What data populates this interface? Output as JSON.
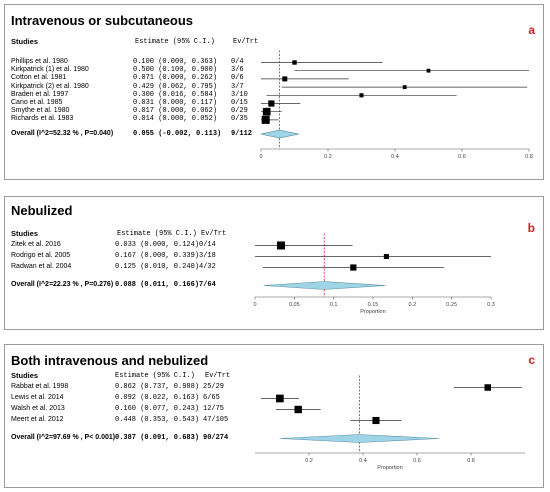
{
  "panels": [
    {
      "title": "Intravenous or subcutaneous",
      "label": "a",
      "header": {
        "studies": "Studies",
        "estimate": "Estimate (95% C.I.)",
        "evtrt": "Ev/Trt"
      },
      "axis_ticks": [
        "0",
        "0.2",
        "0.4",
        "0.6",
        "0.8"
      ],
      "xlabel": "",
      "rows": [
        {
          "study": "Phillips et al. 1980",
          "estimate_text": "0.100 (0.000, 0.363)",
          "evtrt": "0/4"
        },
        {
          "study": "Kirkpatrick (1) et al. 1980",
          "estimate_text": "0.500 (0.100, 0.900)",
          "evtrt": "3/6"
        },
        {
          "study": "Cotton et al. 1981",
          "estimate_text": "0.071 (0.000, 0.262)",
          "evtrt": "0/6"
        },
        {
          "study": "Kirkpatrick (2) et al. 1980",
          "estimate_text": "0.429 (0.062, 0.795)",
          "evtrt": "3/7"
        },
        {
          "study": "Braden et al. 1997",
          "estimate_text": "0.300 (0.016, 0.584)",
          "evtrt": "3/10"
        },
        {
          "study": "Cano et al. 1985",
          "estimate_text": "0.031 (0.000, 0.117)",
          "evtrt": "0/15"
        },
        {
          "study": "Smythe et al. 1980",
          "estimate_text": "0.017 (0.000, 0.062)",
          "evtrt": "0/29"
        },
        {
          "study": "Richards et al. 1983",
          "estimate_text": "0.014 (0.000, 0.052)",
          "evtrt": "0/35"
        }
      ],
      "overall": {
        "study": "Overall (I^2=52.32 % , P=0.040)",
        "estimate_text": "0.055 (-0.002, 0.113)",
        "evtrt": "9/112"
      }
    },
    {
      "title": "Nebulized",
      "label": "b",
      "header": {
        "studies": "Studies",
        "estimate": "Estimate (95% C.I.)",
        "evtrt": "Ev/Trt"
      },
      "axis_ticks": [
        "0",
        "0.05",
        "0.1",
        "0.15",
        "0.2",
        "0.25",
        "0.3"
      ],
      "xlabel": "Proportion",
      "rows": [
        {
          "study": "Zitek et al. 2016",
          "estimate_text": "0.033 (0.000, 0.124)",
          "evtrt": "0/14"
        },
        {
          "study": "Rodrigo et al. 2005",
          "estimate_text": "0.167 (0.000, 0.339)",
          "evtrt": "3/18"
        },
        {
          "study": "Radwan et al. 2004",
          "estimate_text": "0.125 (0.010, 0.240)",
          "evtrt": "4/32"
        }
      ],
      "overall": {
        "study": "Overall (I^2=22.23 % , P=0.276)",
        "estimate_text": "0.088 (0.011, 0.166)",
        "evtrt": "7/64"
      }
    },
    {
      "title": "Both intravenous and nebulized",
      "label": "c",
      "header": {
        "studies": "Studies",
        "estimate": "Estimate (95% C.I.)",
        "evtrt": "Ev/Trt"
      },
      "axis_ticks": [
        "0.2",
        "0.4",
        "0.6",
        "0.8"
      ],
      "xlabel": "Proportion",
      "rows": [
        {
          "study": "Rabbat et al. 1998",
          "estimate_text": "0.862 (0.737, 0.988)",
          "evtrt": "25/29"
        },
        {
          "study": "Lewis et al. 2014",
          "estimate_text": "0.092 (0.022, 0.163)",
          "evtrt": "6/65"
        },
        {
          "study": "Walsh et al. 2013",
          "estimate_text": "0.160 (0.077, 0.243)",
          "evtrt": "12/75"
        },
        {
          "study": "Meert et al. 2012",
          "estimate_text": "0.448 (0.353, 0.543)",
          "evtrt": "47/105"
        }
      ],
      "overall": {
        "study": "Overall (I^2=97.69 % , P< 0.001)",
        "estimate_text": "0.387 (0.091, 0.683)",
        "evtrt": "90/274"
      }
    }
  ],
  "chart_data": [
    {
      "type": "forest",
      "title": "Intravenous or subcutaneous",
      "xlim": [
        0,
        0.8
      ],
      "ticks": [
        0,
        0.2,
        0.4,
        0.6,
        0.8
      ],
      "xlabel": "",
      "colors": {
        "marker": "#000000",
        "summary_fill": "#9fd4e6",
        "reference_line": "#e02020"
      },
      "studies": [
        {
          "name": "Phillips et al. 1980",
          "estimate": 0.1,
          "lower": 0.0,
          "upper": 0.363,
          "weight": 0.4
        },
        {
          "name": "Kirkpatrick (1) et al. 1980",
          "estimate": 0.5,
          "lower": 0.1,
          "upper": 0.9,
          "weight": 0.3
        },
        {
          "name": "Cotton et al. 1981",
          "estimate": 0.071,
          "lower": 0.0,
          "upper": 0.262,
          "weight": 0.5
        },
        {
          "name": "Kirkpatrick (2) et al. 1980",
          "estimate": 0.429,
          "lower": 0.062,
          "upper": 0.795,
          "weight": 0.3
        },
        {
          "name": "Braden et al. 1997",
          "estimate": 0.3,
          "lower": 0.016,
          "upper": 0.584,
          "weight": 0.35
        },
        {
          "name": "Cano et al. 1985",
          "estimate": 0.031,
          "lower": 0.0,
          "upper": 0.117,
          "weight": 0.7
        },
        {
          "name": "Smythe et al. 1980",
          "estimate": 0.017,
          "lower": 0.0,
          "upper": 0.062,
          "weight": 0.95
        },
        {
          "name": "Richards et al. 1983",
          "estimate": 0.014,
          "lower": 0.0,
          "upper": 0.052,
          "weight": 1.0
        }
      ],
      "overall": {
        "estimate": 0.055,
        "lower": -0.002,
        "upper": 0.113
      }
    },
    {
      "type": "forest",
      "title": "Nebulized",
      "xlim": [
        0,
        0.3
      ],
      "ticks": [
        0,
        0.05,
        0.1,
        0.15,
        0.2,
        0.25,
        0.3
      ],
      "xlabel": "Proportion",
      "colors": {
        "marker": "#000000",
        "summary_fill": "#9fd4e6",
        "reference_line": "#e02020"
      },
      "studies": [
        {
          "name": "Zitek et al. 2016",
          "estimate": 0.033,
          "lower": 0.0,
          "upper": 0.124,
          "weight": 1.0
        },
        {
          "name": "Rodrigo et al. 2005",
          "estimate": 0.167,
          "lower": 0.0,
          "upper": 0.339,
          "weight": 0.5
        },
        {
          "name": "Radwan et al. 2004",
          "estimate": 0.125,
          "lower": 0.01,
          "upper": 0.24,
          "weight": 0.7
        }
      ],
      "overall": {
        "estimate": 0.088,
        "lower": 0.011,
        "upper": 0.166
      }
    },
    {
      "type": "forest",
      "title": "Both intravenous and nebulized",
      "xlim": [
        0,
        1.0
      ],
      "ticks": [
        0.2,
        0.4,
        0.6,
        0.8
      ],
      "xlabel": "Proportion",
      "colors": {
        "marker": "#000000",
        "summary_fill": "#9fd4e6",
        "reference_line": "#e02020"
      },
      "studies": [
        {
          "name": "Rabbat et al. 1998",
          "estimate": 0.862,
          "lower": 0.737,
          "upper": 0.988,
          "weight": 0.75
        },
        {
          "name": "Lewis et al. 2014",
          "estimate": 0.092,
          "lower": 0.022,
          "upper": 0.163,
          "weight": 0.95
        },
        {
          "name": "Walsh et al. 2013",
          "estimate": 0.16,
          "lower": 0.077,
          "upper": 0.243,
          "weight": 0.9
        },
        {
          "name": "Meert et al. 2012",
          "estimate": 0.448,
          "lower": 0.353,
          "upper": 0.543,
          "weight": 0.85
        }
      ],
      "overall": {
        "estimate": 0.387,
        "lower": 0.091,
        "upper": 0.683
      }
    }
  ]
}
